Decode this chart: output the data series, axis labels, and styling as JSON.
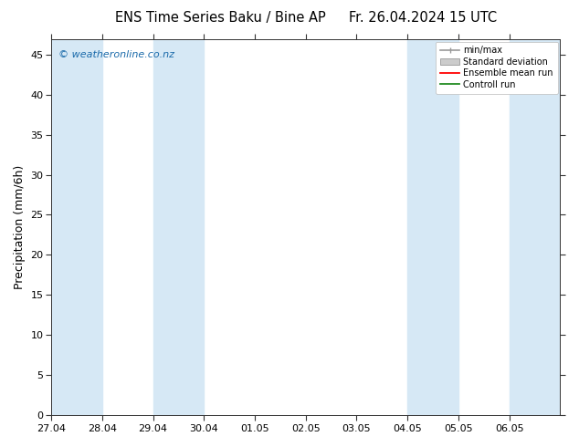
{
  "title_left": "ENS Time Series Baku / Bine AP",
  "title_right": "Fr. 26.04.2024 15 UTC",
  "ylabel": "Precipitation (mm/6h)",
  "watermark": "© weatheronline.co.nz",
  "xlim_start": 0,
  "xlim_end": 10,
  "ylim": [
    0,
    47
  ],
  "yticks": [
    0,
    5,
    10,
    15,
    20,
    25,
    30,
    35,
    40,
    45
  ],
  "xtick_labels": [
    "27.04",
    "28.04",
    "29.04",
    "30.04",
    "01.05",
    "02.05",
    "03.05",
    "04.05",
    "05.05",
    "06.05"
  ],
  "xtick_positions": [
    0,
    1,
    2,
    3,
    4,
    5,
    6,
    7,
    8,
    9
  ],
  "band_color": "#d6e8f5",
  "band_positions": [
    [
      0.0,
      1.0
    ],
    [
      2.0,
      3.0
    ],
    [
      7.0,
      8.0
    ],
    [
      9.0,
      10.0
    ]
  ],
  "legend_labels": [
    "min/max",
    "Standard deviation",
    "Ensemble mean run",
    "Controll run"
  ],
  "legend_colors": [
    "#aaaaaa",
    "#cccccc",
    "#ff0000",
    "#228B22"
  ],
  "bg_color": "#ffffff",
  "plot_bg_color": "#ffffff",
  "title_fontsize": 10.5,
  "ylabel_fontsize": 9,
  "tick_fontsize": 8,
  "watermark_color": "#1a6aaa",
  "watermark_fontsize": 8,
  "spine_color": "#333333",
  "tick_color": "#333333"
}
